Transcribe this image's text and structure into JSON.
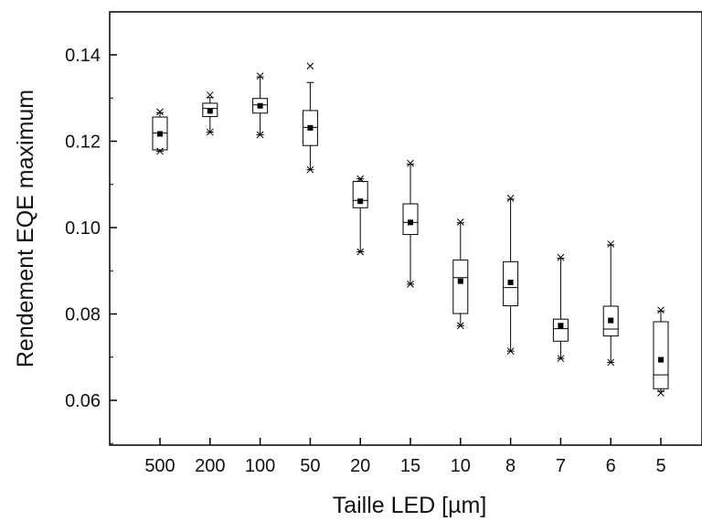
{
  "chart_data": {
    "type": "box",
    "title": "",
    "xlabel": "Taille LED [µm]",
    "ylabel": "Rendement EQE maximum",
    "categories": [
      "500",
      "200",
      "100",
      "50",
      "20",
      "15",
      "10",
      "8",
      "7",
      "6",
      "5"
    ],
    "ylim": [
      0.05,
      0.145
    ],
    "yticks": [
      "0.06",
      "0.08",
      "0.10",
      "0.12",
      "0.14"
    ],
    "grid": false,
    "boxes": [
      {
        "category": "500",
        "whisker_low": 0.1177,
        "q1": 0.118,
        "median": 0.1219,
        "q3": 0.1256,
        "whisker_high": 0.1266,
        "mean": 0.1217,
        "min": 0.1177,
        "max": 0.1268
      },
      {
        "category": "200",
        "whisker_low": 0.1221,
        "q1": 0.1257,
        "median": 0.1276,
        "q3": 0.1288,
        "whisker_high": 0.1301,
        "mean": 0.127,
        "min": 0.1221,
        "max": 0.1307
      },
      {
        "category": "100",
        "whisker_low": 0.1215,
        "q1": 0.1265,
        "median": 0.1284,
        "q3": 0.1299,
        "whisker_high": 0.1349,
        "mean": 0.1282,
        "min": 0.1215,
        "max": 0.1351
      },
      {
        "category": "50",
        "whisker_low": 0.1134,
        "q1": 0.119,
        "median": 0.1232,
        "q3": 0.1271,
        "whisker_high": 0.1336,
        "mean": 0.1231,
        "min": 0.1134,
        "max": 0.1374
      },
      {
        "category": "20",
        "whisker_low": 0.0944,
        "q1": 0.1046,
        "median": 0.1063,
        "q3": 0.1107,
        "whisker_high": 0.1113,
        "mean": 0.1061,
        "min": 0.0944,
        "max": 0.1113
      },
      {
        "category": "15",
        "whisker_low": 0.0869,
        "q1": 0.0984,
        "median": 0.1012,
        "q3": 0.1055,
        "whisker_high": 0.1147,
        "mean": 0.1012,
        "min": 0.0869,
        "max": 0.1149
      },
      {
        "category": "10",
        "whisker_low": 0.0773,
        "q1": 0.0801,
        "median": 0.0884,
        "q3": 0.0925,
        "whisker_high": 0.1011,
        "mean": 0.0876,
        "min": 0.0773,
        "max": 0.1013
      },
      {
        "category": "8",
        "whisker_low": 0.0714,
        "q1": 0.0819,
        "median": 0.0861,
        "q3": 0.0921,
        "whisker_high": 0.1066,
        "mean": 0.0873,
        "min": 0.0714,
        "max": 0.1068
      },
      {
        "category": "7",
        "whisker_low": 0.0697,
        "q1": 0.0737,
        "median": 0.0766,
        "q3": 0.0788,
        "whisker_high": 0.0929,
        "mean": 0.0773,
        "min": 0.0697,
        "max": 0.0931
      },
      {
        "category": "6",
        "whisker_low": 0.0688,
        "q1": 0.0749,
        "median": 0.0765,
        "q3": 0.0818,
        "whisker_high": 0.096,
        "mean": 0.0785,
        "min": 0.0688,
        "max": 0.0962
      },
      {
        "category": "5",
        "whisker_low": 0.0621,
        "q1": 0.0627,
        "median": 0.0659,
        "q3": 0.0782,
        "whisker_high": 0.0807,
        "mean": 0.0694,
        "min": 0.0617,
        "max": 0.0809
      }
    ],
    "colors": {
      "stroke": "#000000",
      "mean_marker": "#000000",
      "background": "#ffffff"
    }
  }
}
